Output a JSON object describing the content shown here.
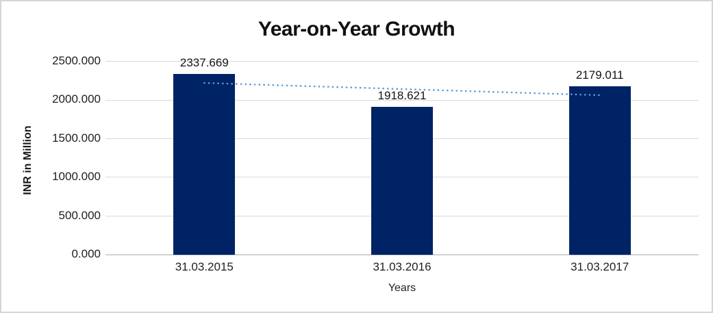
{
  "chart_data": {
    "type": "bar",
    "title": "Year-on-Year Growth",
    "xlabel": "Years",
    "ylabel": "INR in Million",
    "categories": [
      "31.03.2015",
      "31.03.2016",
      "31.03.2017"
    ],
    "values": [
      2337.669,
      1918.621,
      2179.011
    ],
    "data_labels": [
      "2337.669",
      "1918.621",
      "2179.011"
    ],
    "ylim": [
      0,
      2500
    ],
    "ytick_step": 500,
    "yticks": [
      "0.000",
      "500.000",
      "1000.000",
      "1500.000",
      "2000.000",
      "2500.000"
    ],
    "grid": "horizontal",
    "legend": "none",
    "trendline": {
      "type": "linear",
      "style": "dotted"
    },
    "colors": {
      "bar": "#002366",
      "trendline": "#5b9bd5",
      "gridline": "#d9d9d9",
      "axis_line": "#d2d2d2",
      "text": "#1f1f1f",
      "border": "#d5d5d5"
    }
  }
}
